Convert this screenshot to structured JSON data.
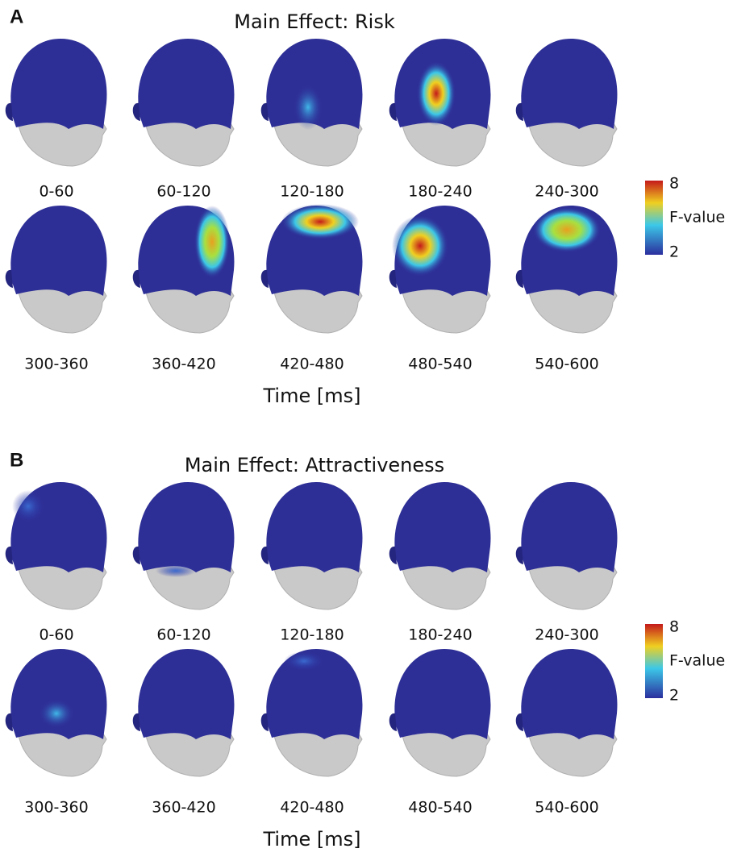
{
  "panels": [
    {
      "letter": "A",
      "title": "Main Effect: Risk",
      "rows": [
        [
          "0-60",
          "60-120",
          "120-180",
          "180-240",
          "240-300"
        ],
        [
          "300-360",
          "360-420",
          "420-480",
          "480-540",
          "540-600"
        ]
      ],
      "xlabel": "Time [ms]",
      "colorbar": {
        "max": 8,
        "label": "F-value",
        "min": 2
      }
    },
    {
      "letter": "B",
      "title": "Main Effect: Attractiveness",
      "rows": [
        [
          "0-60",
          "60-120",
          "120-180",
          "180-240",
          "240-300"
        ],
        [
          "300-360",
          "360-420",
          "420-480",
          "480-540",
          "540-600"
        ]
      ],
      "xlabel": "Time [ms]",
      "colorbar": {
        "max": 8,
        "label": "F-value",
        "min": 2
      }
    }
  ]
}
